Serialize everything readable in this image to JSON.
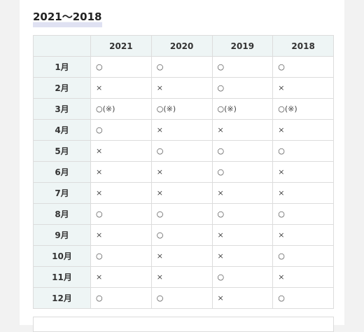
{
  "heading": "2021～2018",
  "table": {
    "years": [
      "2021",
      "2020",
      "2019",
      "2018"
    ],
    "rows": [
      {
        "month": "1月",
        "cells": [
          "○",
          "○",
          "○",
          "○"
        ]
      },
      {
        "month": "2月",
        "cells": [
          "×",
          "×",
          "○",
          "×"
        ]
      },
      {
        "month": "3月",
        "cells": [
          "○(※)",
          "○(※)",
          "○(※)",
          "○(※)"
        ]
      },
      {
        "month": "4月",
        "cells": [
          "○",
          "×",
          "×",
          "×"
        ]
      },
      {
        "month": "5月",
        "cells": [
          "×",
          "○",
          "○",
          "○"
        ]
      },
      {
        "month": "6月",
        "cells": [
          "×",
          "×",
          "○",
          "×"
        ]
      },
      {
        "month": "7月",
        "cells": [
          "×",
          "×",
          "×",
          "×"
        ]
      },
      {
        "month": "8月",
        "cells": [
          "○",
          "○",
          "○",
          "○"
        ]
      },
      {
        "month": "9月",
        "cells": [
          "×",
          "○",
          "×",
          "×"
        ]
      },
      {
        "month": "10月",
        "cells": [
          "○",
          "×",
          "×",
          "○"
        ]
      },
      {
        "month": "11月",
        "cells": [
          "×",
          "×",
          "○",
          "×"
        ]
      },
      {
        "month": "12月",
        "cells": [
          "○",
          "○",
          "×",
          "○"
        ]
      }
    ]
  }
}
